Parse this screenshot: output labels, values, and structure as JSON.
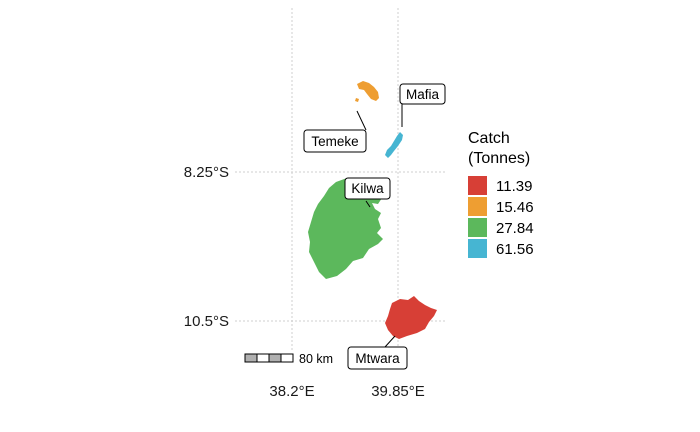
{
  "axes": {
    "lat_ticks": [
      "8.25°S",
      "10.5°S"
    ],
    "lon_ticks": [
      "38.2°E",
      "39.85°E"
    ]
  },
  "regions": [
    {
      "name": "Mafia",
      "catch": 61.56
    },
    {
      "name": "Temeke",
      "catch": 15.46
    },
    {
      "name": "Kilwa",
      "catch": 27.84
    },
    {
      "name": "Mtwara",
      "catch": 11.39
    }
  ],
  "legend": {
    "title_line1": "Catch",
    "title_line2": "(Tonnes)",
    "items": [
      {
        "label": "11.39",
        "color": "#d73f36"
      },
      {
        "label": "15.46",
        "color": "#ee9e32"
      },
      {
        "label": "27.84",
        "color": "#5cb85c"
      },
      {
        "label": "61.56",
        "color": "#46b5d2"
      }
    ]
  },
  "scale_bar": {
    "label": "80 km"
  }
}
